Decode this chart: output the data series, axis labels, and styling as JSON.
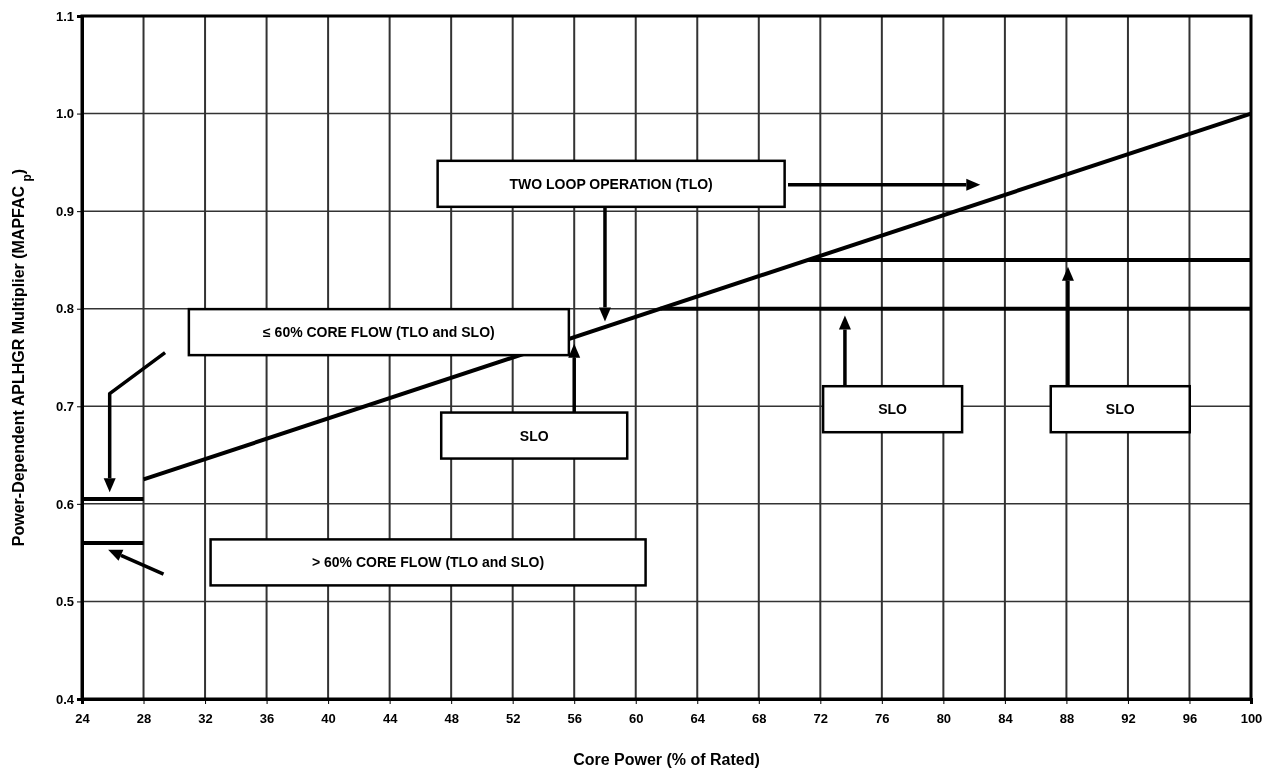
{
  "chart_data": {
    "type": "line",
    "xlabel": "Core Power (% of Rated)",
    "ylabel": "Power-Dependent APLHGR Multiplier (MAPFAC $_{p}$)",
    "xlim": [
      24,
      100
    ],
    "xticks": [
      24,
      28,
      32,
      36,
      40,
      44,
      48,
      52,
      56,
      60,
      64,
      68,
      72,
      76,
      80,
      84,
      88,
      92,
      96,
      100
    ],
    "ylim": [
      0.4,
      1.1
    ],
    "yticks": [
      0.4,
      0.5,
      0.6,
      0.7,
      0.8,
      0.9,
      {
        "value": 1.0,
        "label": "1.0"
      },
      {
        "value": 1.1,
        "label": "1.1"
      }
    ],
    "grid": true,
    "marker": "none",
    "line_style": "solid",
    "series": [
      {
        "color": "#000000",
        "x": [
          28,
          100
        ],
        "values": [
          0.625,
          1.0
        ]
      },
      {
        "color": "#000000",
        "x": [
          61.6,
          100
        ],
        "values": [
          0.8,
          0.8
        ]
      },
      {
        "color": "#000000",
        "x": [
          71.2,
          100
        ],
        "values": [
          0.85,
          0.85
        ]
      },
      {
        "color": "#000000",
        "x": [
          24,
          28
        ],
        "values": [
          0.605,
          0.605
        ]
      },
      {
        "color": "#000000",
        "x": [
          24,
          28
        ],
        "values": [
          0.56,
          0.56
        ]
      }
    ],
    "annotations": [
      "TWO LOOP OPERATION (TLO)",
      "≤ 60% CORE FLOW (TLO and SLO)",
      "> 60% CORE FLOW (TLO and SLO)",
      "SLO",
      "SLO",
      "SLO"
    ]
  }
}
